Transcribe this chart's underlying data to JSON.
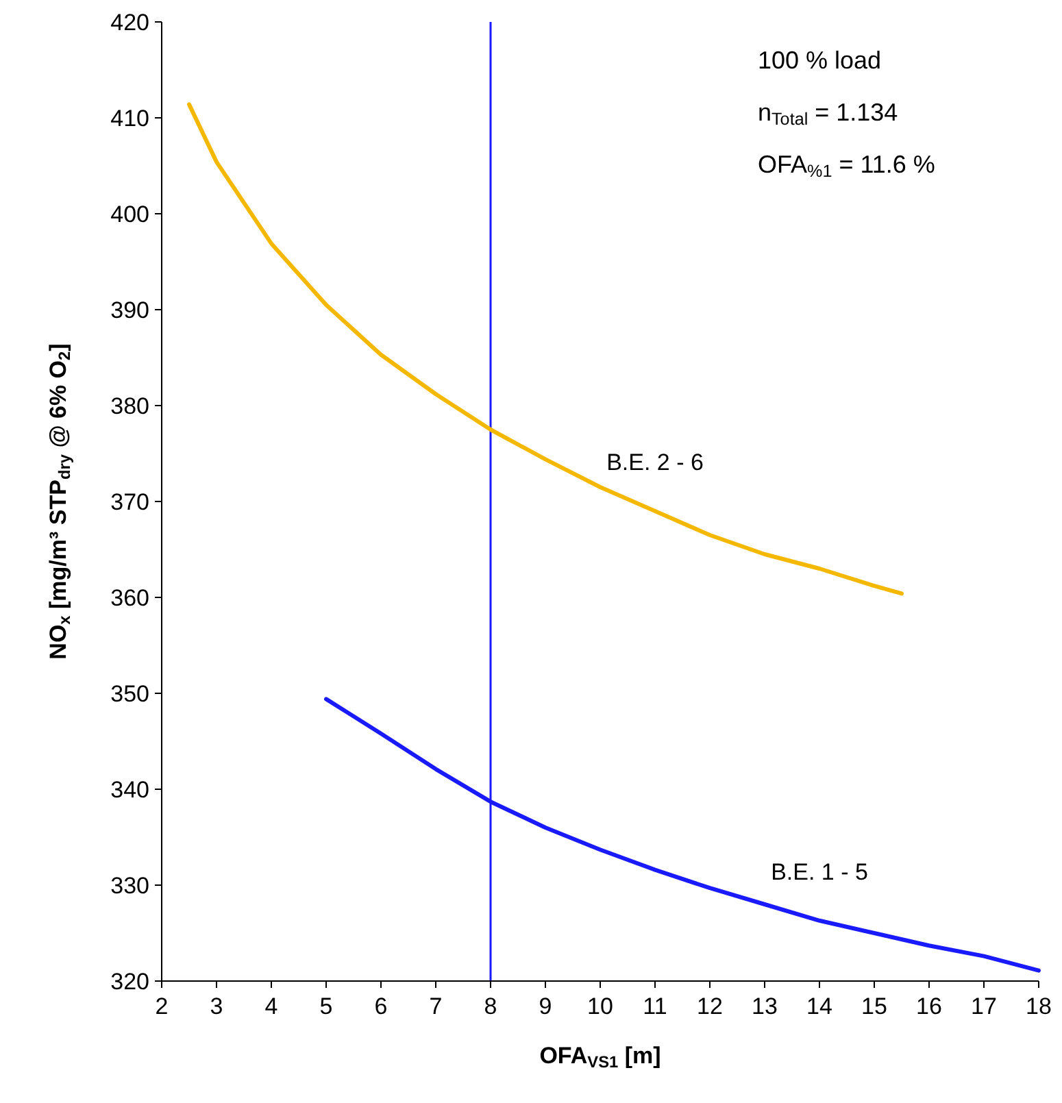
{
  "chart_data": {
    "type": "line",
    "xlabel": "OFA$_{VS1}$ [m]",
    "ylabel": "NO$_{x}$ [mg/m³ STP$_{dry}$ @ 6% O$_{2}$]",
    "xlim": [
      2,
      18
    ],
    "xticks": [
      2,
      3,
      4,
      5,
      6,
      7,
      8,
      9,
      10,
      11,
      12,
      13,
      14,
      15,
      16,
      17,
      18
    ],
    "ylim": [
      320,
      420
    ],
    "yticks": [
      320,
      330,
      340,
      350,
      360,
      370,
      380,
      390,
      400,
      410,
      420
    ],
    "grid": false,
    "marker": "none",
    "line_style": "solid",
    "series": [
      {
        "name": "B.E. 2 - 6",
        "color": "#f5b800",
        "x": [
          2.5,
          3,
          4,
          5,
          6,
          7,
          8,
          9,
          10,
          11,
          12,
          13,
          14,
          15,
          15.5
        ],
        "values": [
          411.4,
          405.4,
          396.9,
          390.5,
          385.3,
          381.2,
          377.5,
          374.4,
          371.5,
          369,
          366.5,
          364.5,
          363,
          361.2,
          360.4
        ]
      },
      {
        "name": "B.E. 1 - 5",
        "color": "#1a1aff",
        "x": [
          5,
          6,
          7,
          8,
          9,
          10,
          11,
          12,
          13,
          14,
          15,
          16,
          17,
          18
        ],
        "values": [
          349.4,
          345.8,
          342.1,
          338.7,
          336,
          333.7,
          331.6,
          329.7,
          328,
          326.3,
          325,
          323.7,
          322.6,
          321.1
        ]
      }
    ],
    "ref_lines": [
      {
        "axis": "x",
        "value": 8,
        "color": "#1a1aff"
      }
    ],
    "annotations": [
      "100 % load",
      "n$_{Total}$ = 1.134",
      "OFA$_{%1}$ = 11.6 %"
    ]
  }
}
